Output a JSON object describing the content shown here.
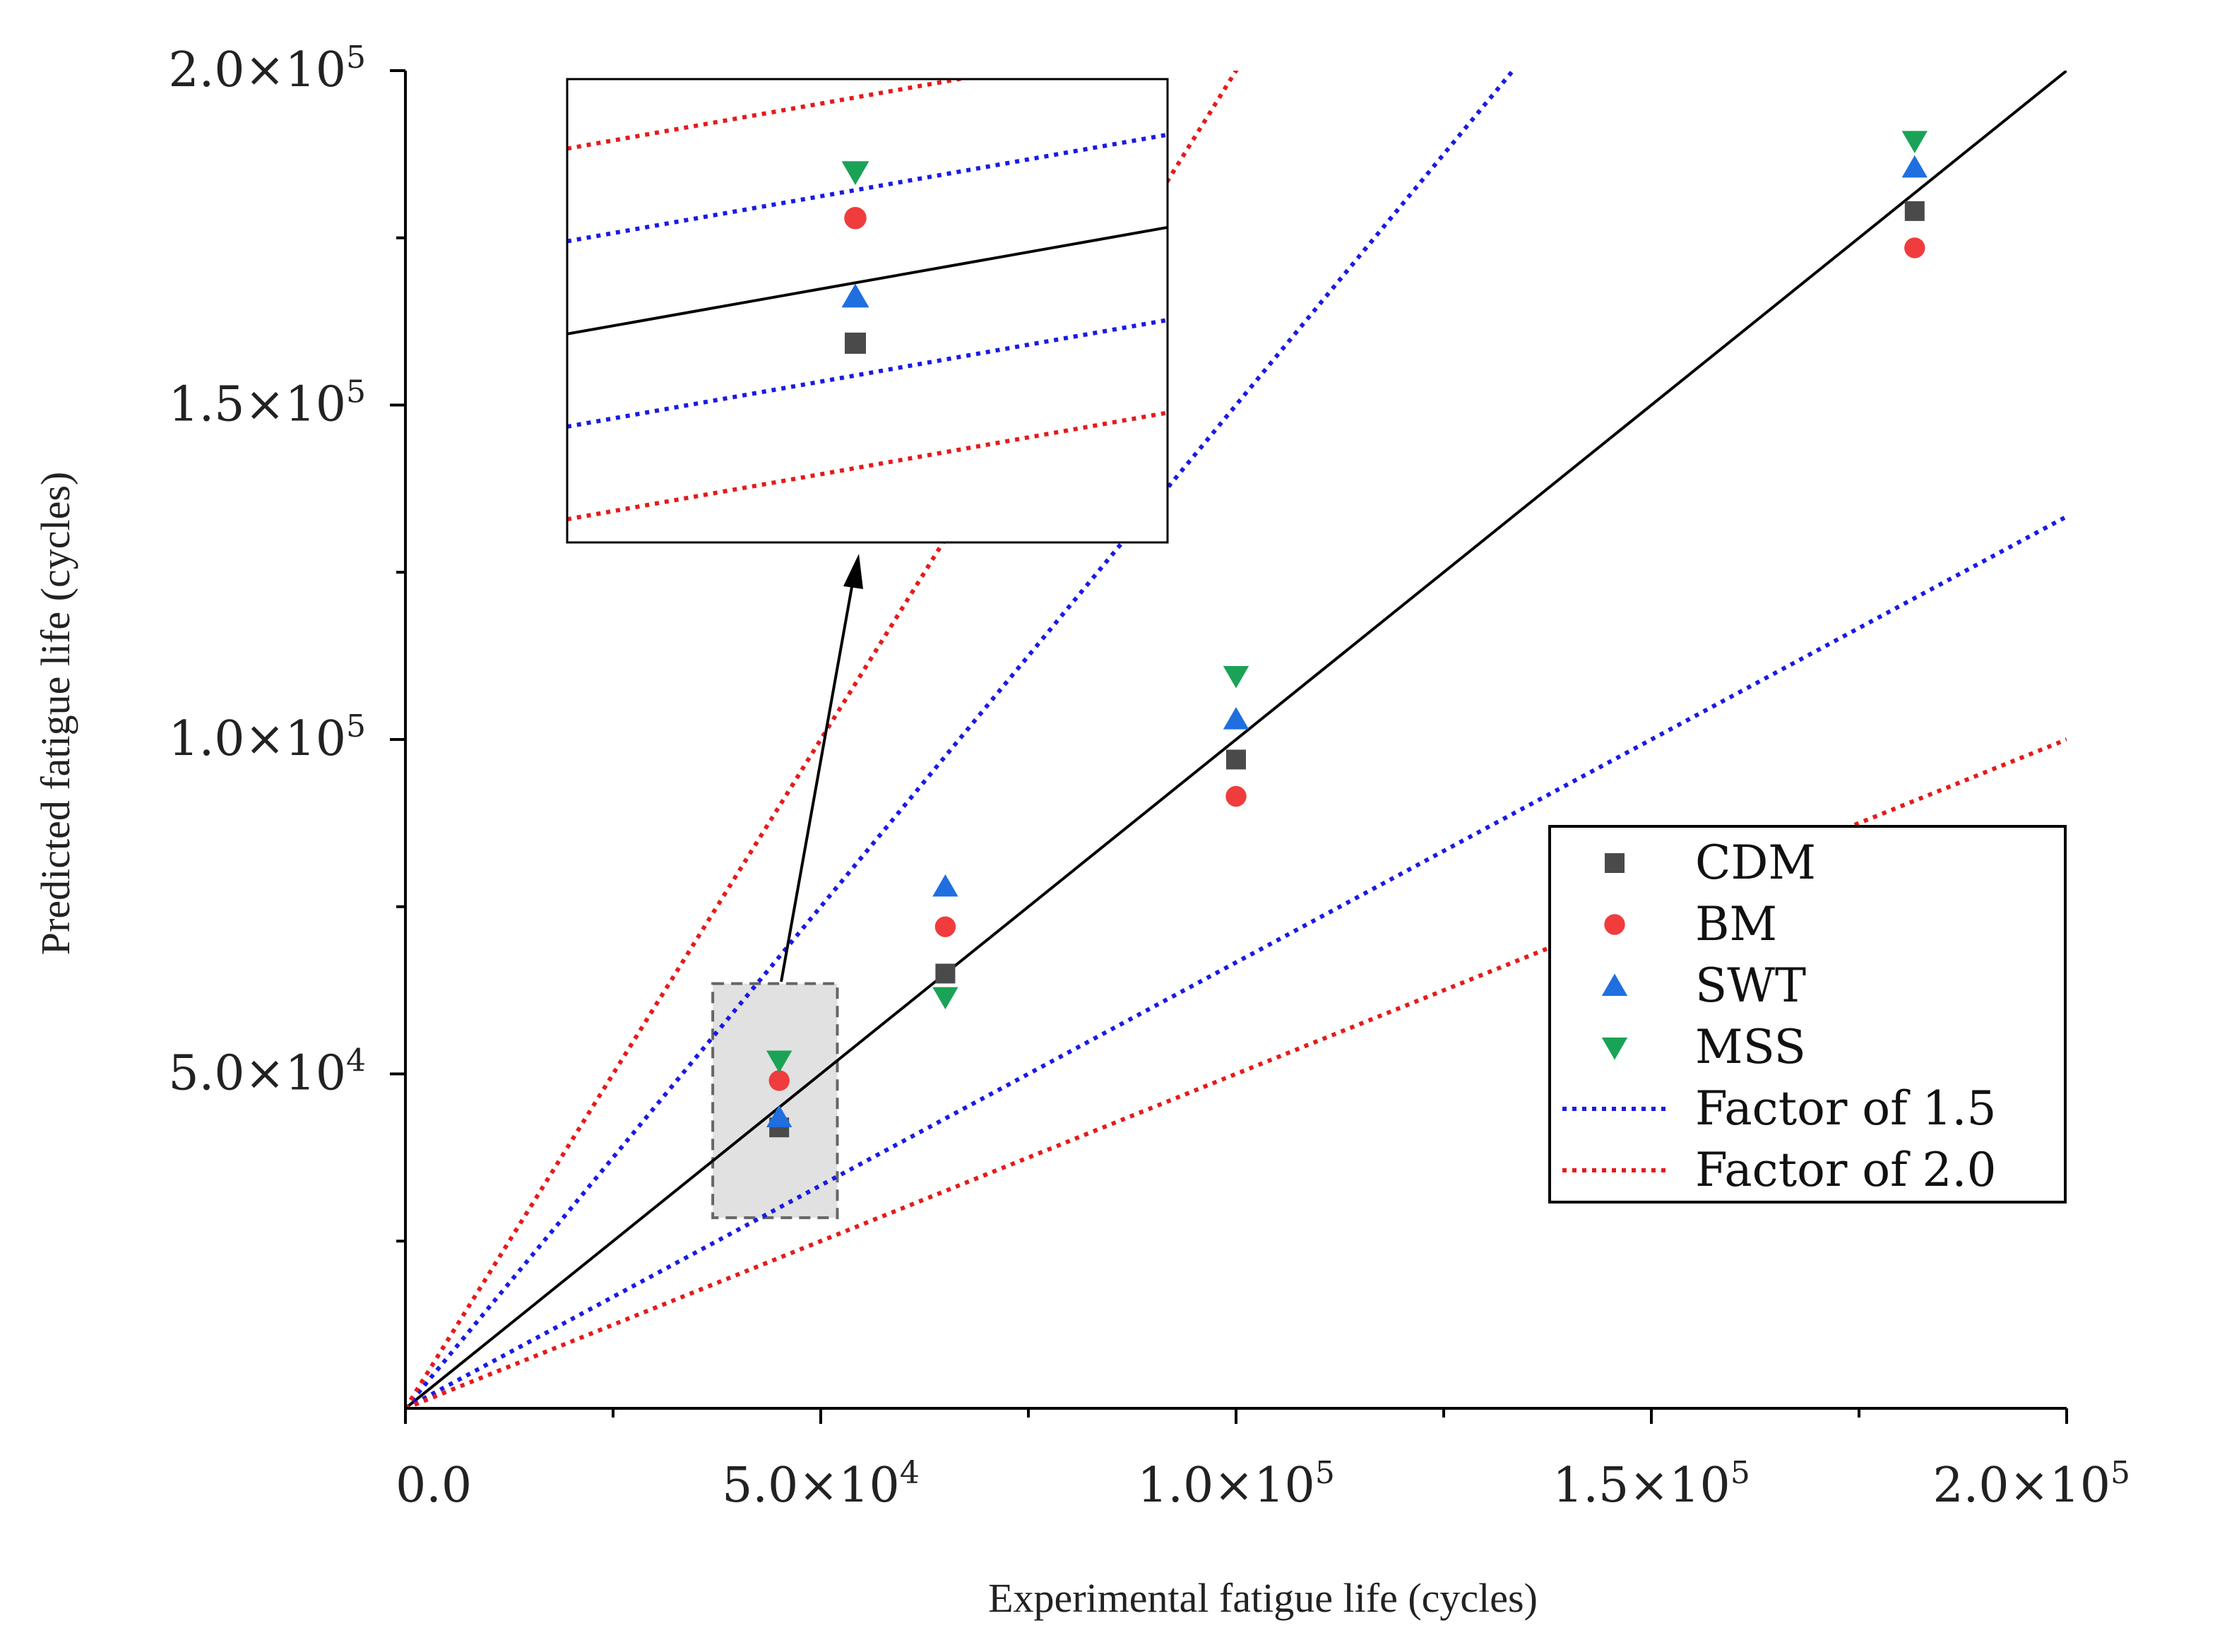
{
  "chart_data": {
    "type": "scatter",
    "xlabel": "Experimental fatigue life (cycles)",
    "ylabel": "Predicted fatigue life (cycles)",
    "xlim": [
      0,
      200000
    ],
    "ylim": [
      0,
      200000
    ],
    "x_ticks": [
      {
        "value": 0,
        "label": "0.0"
      },
      {
        "value": 50000,
        "label": "5.0×10",
        "exp": "4"
      },
      {
        "value": 100000,
        "label": "1.0×10",
        "exp": "5"
      },
      {
        "value": 150000,
        "label": "1.5×10",
        "exp": "5"
      },
      {
        "value": 200000,
        "label": "2.0×10",
        "exp": "5"
      }
    ],
    "y_ticks": [
      {
        "value": 50000,
        "label": "5.0×10",
        "exp": "4"
      },
      {
        "value": 100000,
        "label": "1.0×10",
        "exp": "5"
      },
      {
        "value": 150000,
        "label": "1.5×10",
        "exp": "5"
      },
      {
        "value": 200000,
        "label": "2.0×10",
        "exp": "5"
      }
    ],
    "series": [
      {
        "name": "CDM",
        "marker": "square",
        "color": "#4a4a4a",
        "points": [
          [
            45000,
            42000
          ],
          [
            65000,
            65000
          ],
          [
            100000,
            97000
          ],
          [
            181700,
            179000
          ]
        ]
      },
      {
        "name": "BM",
        "marker": "circle",
        "color": "#f03c3c",
        "points": [
          [
            45000,
            49000
          ],
          [
            65000,
            72000
          ],
          [
            100000,
            91500
          ],
          [
            181700,
            173500
          ]
        ]
      },
      {
        "name": "SWT",
        "marker": "triangle-up",
        "color": "#1f6fe0",
        "points": [
          [
            45000,
            43500
          ],
          [
            65000,
            78000
          ],
          [
            100000,
            103000
          ],
          [
            181700,
            185500
          ]
        ]
      },
      {
        "name": "MSS",
        "marker": "triangle-down",
        "color": "#1aa356",
        "points": [
          [
            45000,
            52000
          ],
          [
            65000,
            61500
          ],
          [
            100000,
            109500
          ],
          [
            181700,
            189500
          ]
        ]
      }
    ],
    "reference_lines": [
      {
        "name": "Perfect correlation",
        "style": "solid",
        "color": "#000000",
        "factor": 1.0
      },
      {
        "name": "Factor of 1.5",
        "style": "dotted",
        "color": "#1a1ae6",
        "factor": 1.5
      },
      {
        "name": "Factor of 2.0",
        "style": "dotted",
        "color": "#e61a1a",
        "factor": 2.0
      }
    ],
    "legend": {
      "position": "right",
      "entries": [
        {
          "label": "CDM",
          "kind": "square",
          "color": "#4a4a4a"
        },
        {
          "label": "BM",
          "kind": "circle",
          "color": "#f03c3c"
        },
        {
          "label": "SWT",
          "kind": "triangle-up",
          "color": "#1f6fe0"
        },
        {
          "label": "MSS",
          "kind": "triangle-down",
          "color": "#1aa356"
        },
        {
          "label": "Factor of 1.5",
          "kind": "line",
          "color": "#1a1ae6"
        },
        {
          "label": "Factor of 2.0",
          "kind": "line",
          "color": "#e61a1a"
        }
      ]
    },
    "inset": {
      "description": "zoomed view of highlighted region",
      "region_x": [
        37000,
        52000
      ],
      "region_y": [
        28500,
        63500
      ]
    }
  }
}
